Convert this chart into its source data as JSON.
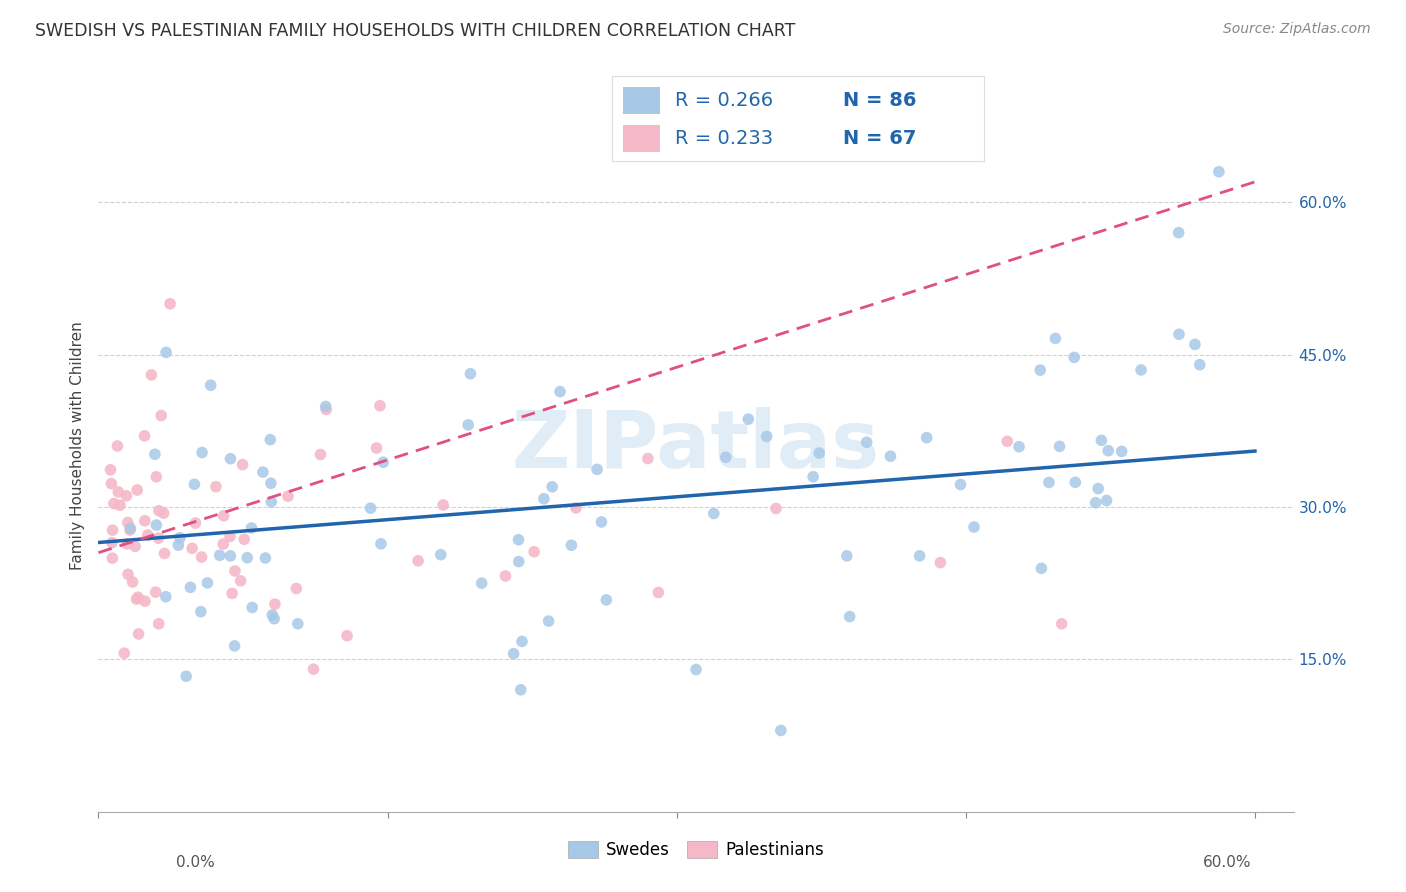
{
  "title": "SWEDISH VS PALESTINIAN FAMILY HOUSEHOLDS WITH CHILDREN CORRELATION CHART",
  "source": "Source: ZipAtlas.com",
  "ylabel": "Family Households with Children",
  "legend_label1": "Swedes",
  "legend_label2": "Palestinians",
  "r1": 0.266,
  "n1": 86,
  "r2": 0.233,
  "n2": 67,
  "color_swedes": "#a8c8e8",
  "color_palestinians": "#f4b8c8",
  "color_swedes_line": "#2166ac",
  "color_palestinians_line": "#e05080",
  "watermark": "ZIPatlas",
  "xlim": [
    0.0,
    0.62
  ],
  "ylim": [
    0.0,
    0.72
  ],
  "yticks": [
    0.15,
    0.3,
    0.45,
    0.6
  ],
  "ytick_labels": [
    "15.0%",
    "30.0%",
    "45.0%",
    "60.0%"
  ],
  "sw_line_x0": 0.0,
  "sw_line_y0": 0.265,
  "sw_line_x1": 0.6,
  "sw_line_y1": 0.355,
  "pal_line_x0": 0.0,
  "pal_line_y0": 0.255,
  "pal_line_x1": 0.6,
  "pal_line_y1": 0.62
}
